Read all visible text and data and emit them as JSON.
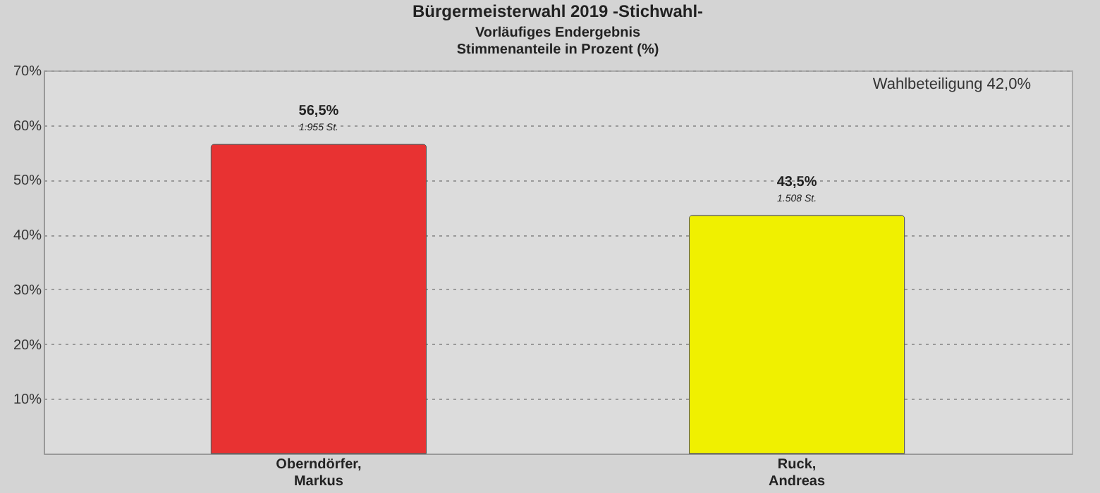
{
  "chart_data": {
    "type": "bar",
    "title": "Bürgermeisterwahl 2019 -Stichwahl-",
    "subtitle": "Vorläufiges Endergebnis",
    "ylabel": "Stimmenanteile in Prozent (%)",
    "categories": [
      "Oberndörfer, Markus",
      "Ruck, Andreas"
    ],
    "values": [
      56.5,
      43.5
    ],
    "colors": [
      "#e83232",
      "#f0f000"
    ],
    "value_labels": [
      "56,5%",
      "43,5%"
    ],
    "annotations": [
      "Wahlbeteiligung 42,0%",
      {
        "text": "1.955 St.",
        "x": "Oberndörfer, Markus",
        "y": 56.5
      },
      {
        "text": "1.508 St.",
        "x": "Ruck, Andreas",
        "y": 43.5
      }
    ],
    "ylim": [
      0,
      70
    ],
    "yticks": [
      {
        "value": 10,
        "label": "10%"
      },
      {
        "value": 20,
        "label": "20%"
      },
      {
        "value": 30,
        "label": "30%"
      },
      {
        "value": 40,
        "label": "40%"
      },
      {
        "value": 50,
        "label": "50%"
      },
      {
        "value": 60,
        "label": "60%"
      },
      {
        "value": 70,
        "label": "70%"
      }
    ],
    "grid": "y"
  }
}
